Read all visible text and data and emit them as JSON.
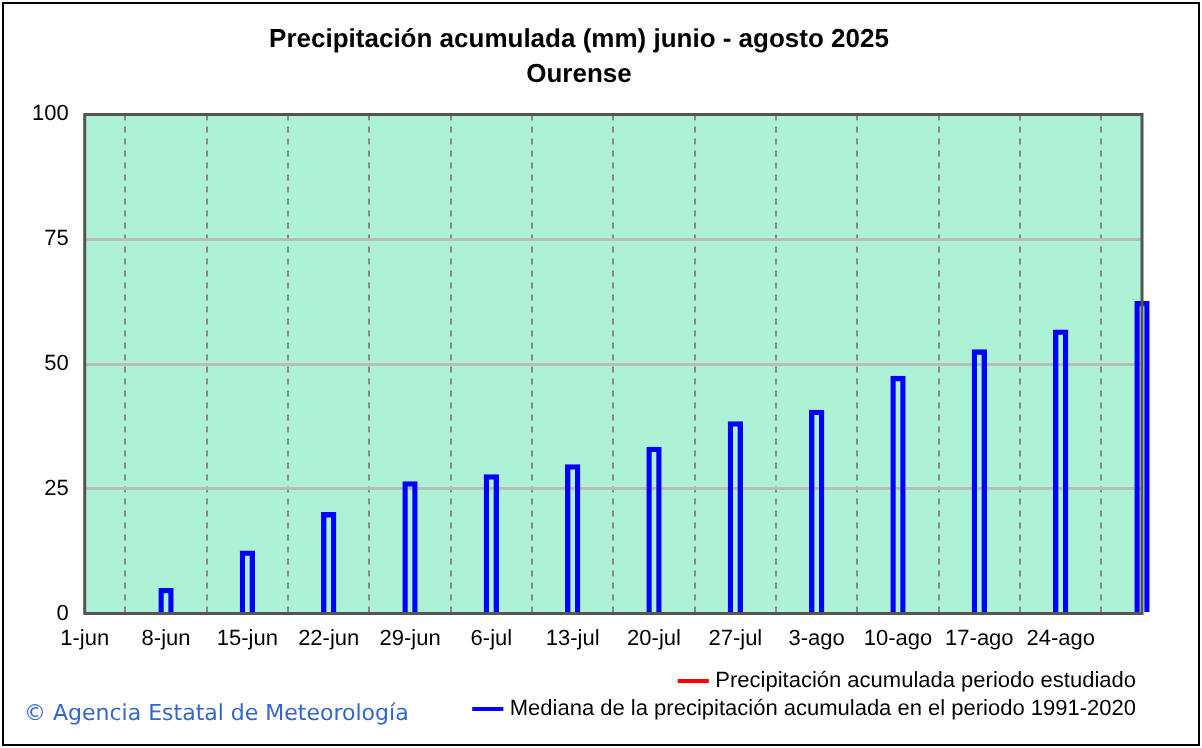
{
  "chart_data": {
    "type": "bar",
    "title": "Precipitación acumulada (mm) junio - agosto 2025",
    "subtitle": "Ourense",
    "categories": [
      "1-jun",
      "8-jun",
      "15-jun",
      "22-jun",
      "29-jun",
      "6-jul",
      "13-jul",
      "20-jul",
      "27-jul",
      "3-ago",
      "10-ago",
      "17-ago",
      "24-ago",
      null
    ],
    "series": [
      {
        "name": "Precipitación acumulada periodo estudiado",
        "type": "line",
        "color": "#ff0000",
        "values": [
          null,
          null,
          null,
          null,
          null,
          null,
          null,
          null,
          null,
          null,
          null,
          null,
          null,
          null
        ]
      },
      {
        "name": "Mediana de la precipitación acumulada en el periodo 1991-2020",
        "color": "#0000ff",
        "values": [
          0,
          5,
          12.5,
          20.2,
          26.4,
          27.8,
          29.8,
          33.3,
          38.4,
          40.7,
          47.5,
          52.8,
          56.8,
          62.5
        ]
      }
    ],
    "ylim": [
      0,
      100
    ],
    "yticks": [
      0,
      25,
      50,
      75,
      100
    ],
    "grid": true,
    "legend": "bottom",
    "annotations": [
      "© Agencia Estatal de Meteorología"
    ]
  }
}
